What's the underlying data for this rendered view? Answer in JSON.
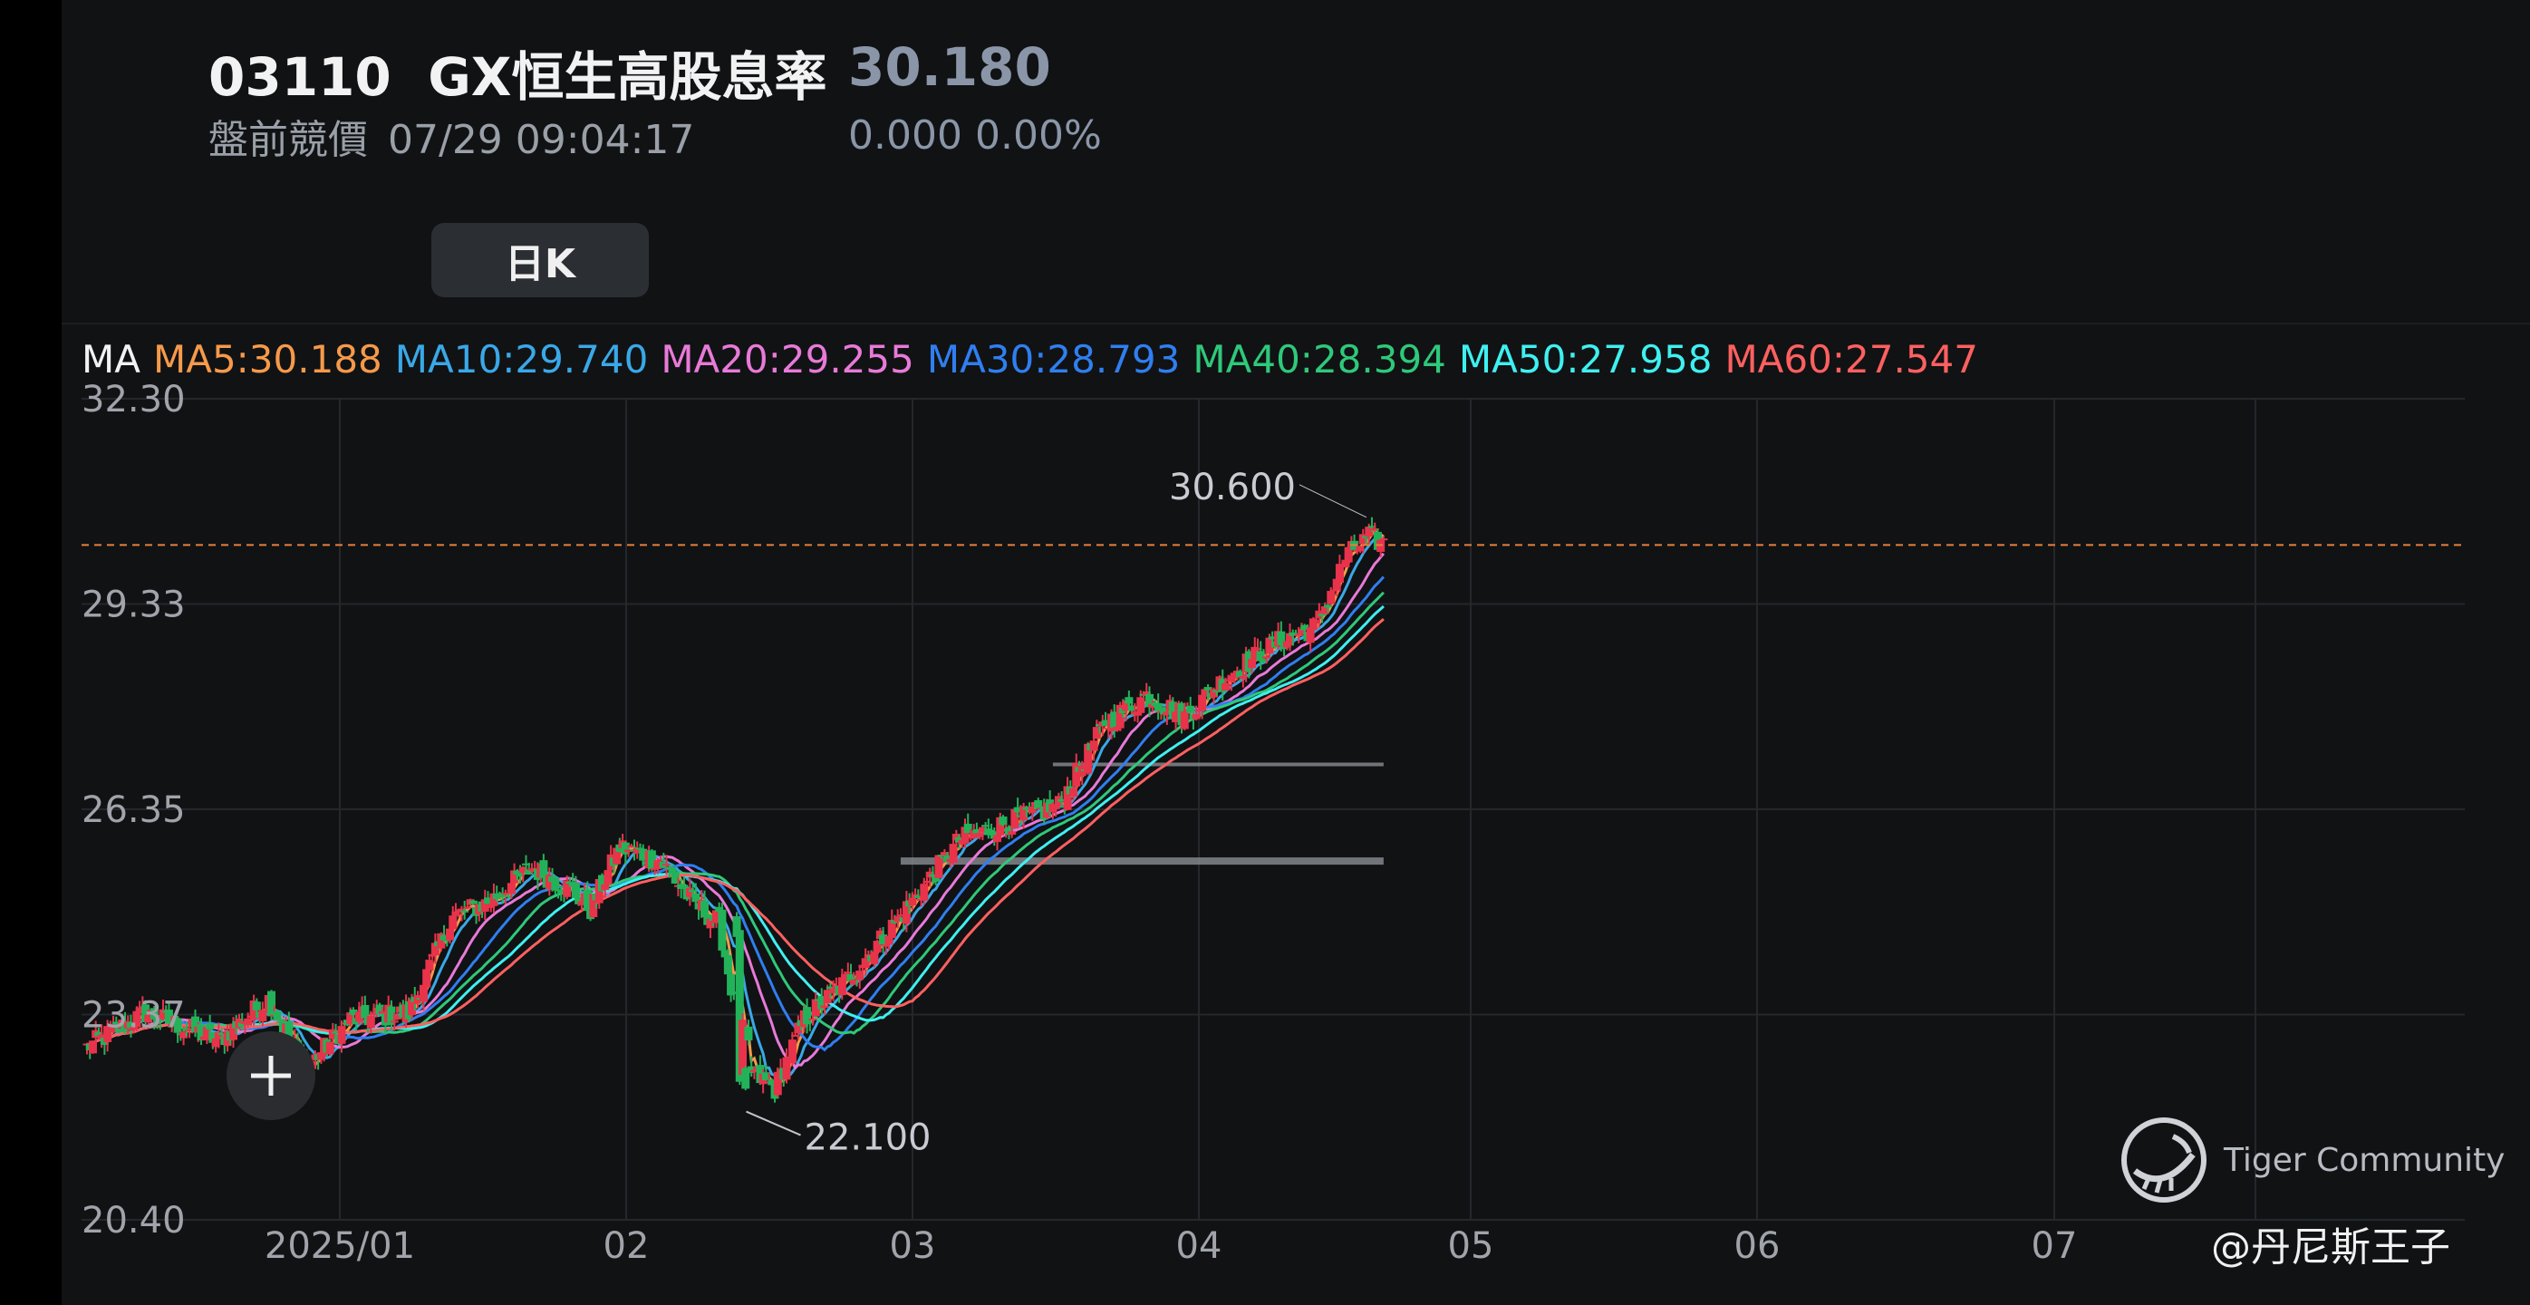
{
  "header": {
    "code": "03110",
    "name": "GX恒生高股息率",
    "price": "30.180",
    "session_label": "盤前競價",
    "timestamp": "07/29 09:04:17",
    "change": "0.000",
    "change_pct": "0.00%",
    "period_button": "日K"
  },
  "ma_legend": {
    "prefix": "MA",
    "items": [
      {
        "label": "MA5:30.188",
        "color": "#f59a4a"
      },
      {
        "label": "MA10:29.740",
        "color": "#3aa8e8"
      },
      {
        "label": "MA20:29.255",
        "color": "#e87ad8"
      },
      {
        "label": "MA30:28.793",
        "color": "#2f7ff0"
      },
      {
        "label": "MA40:28.394",
        "color": "#2ec97a"
      },
      {
        "label": "MA50:27.958",
        "color": "#3ff0f0"
      },
      {
        "label": "MA60:27.547",
        "color": "#ff6060"
      }
    ]
  },
  "chart_data": {
    "type": "candlestick",
    "y_ticks": [
      "32.30",
      "29.33",
      "26.35",
      "23.37",
      "20.40"
    ],
    "ylim": [
      20.4,
      32.3
    ],
    "x_ticks": [
      "2025/01",
      "02",
      "03",
      "04",
      "05",
      "06",
      "07"
    ],
    "high_label": "30.600",
    "low_label": "22.100",
    "current_price": 30.18,
    "up_color": "#e8334a",
    "down_color": "#22b35a",
    "grid": true,
    "price_path": [
      [
        0,
        22.9
      ],
      [
        20,
        23.4
      ],
      [
        45,
        23.0
      ],
      [
        62,
        23.6
      ],
      [
        75,
        22.6
      ],
      [
        90,
        23.3
      ],
      [
        110,
        23.4
      ],
      [
        125,
        24.8
      ],
      [
        137,
        25.0
      ],
      [
        152,
        25.5
      ],
      [
        165,
        25.2
      ],
      [
        172,
        24.9
      ],
      [
        182,
        25.8
      ],
      [
        196,
        25.6
      ],
      [
        207,
        25.0
      ],
      [
        216,
        24.7
      ],
      [
        225,
        22.6
      ],
      [
        235,
        22.3
      ],
      [
        245,
        23.3
      ],
      [
        258,
        23.8
      ],
      [
        278,
        24.8
      ],
      [
        298,
        25.9
      ],
      [
        318,
        26.2
      ],
      [
        332,
        26.4
      ],
      [
        348,
        27.6
      ],
      [
        362,
        28.0
      ],
      [
        375,
        27.7
      ],
      [
        390,
        28.3
      ],
      [
        408,
        28.8
      ],
      [
        420,
        29.0
      ],
      [
        430,
        30.0
      ],
      [
        438,
        30.3
      ],
      [
        443,
        30.2
      ]
    ],
    "ma_series": [
      {
        "period": 5,
        "last": 30.188
      },
      {
        "period": 10,
        "last": 29.74
      },
      {
        "period": 20,
        "last": 29.255
      },
      {
        "period": 30,
        "last": 28.793
      },
      {
        "period": 40,
        "last": 28.394
      },
      {
        "period": 50,
        "last": 27.958
      },
      {
        "period": 60,
        "last": 27.547
      }
    ],
    "horizontal_levels": [
      27.0,
      25.6
    ]
  },
  "ui": {
    "plus_button": "+",
    "watermark": "Tiger Community",
    "author": "@丹尼斯王子"
  }
}
